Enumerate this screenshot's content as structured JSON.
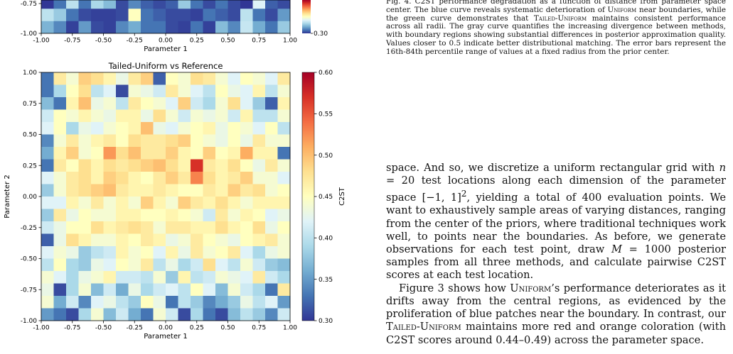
{
  "chart_data": [
    {
      "type": "heatmap",
      "title": "",
      "xlabel": "Parameter 1",
      "ylabel": "",
      "xlim": [
        -1.0,
        1.0
      ],
      "ylim": [
        -1.0,
        -0.75
      ],
      "xticks": [
        "-1.00",
        "-0.75",
        "-0.50",
        "-0.25",
        "0.00",
        "0.25",
        "0.50",
        "0.75",
        "1.00"
      ],
      "yticks": [
        "-1.00",
        "-0.75"
      ],
      "colorbar_ticks": [
        "0.30"
      ],
      "clim": [
        0.3,
        0.6
      ],
      "grid": false,
      "rows_visible_from_bottom": [
        [
          0.365,
          0.34,
          0.305,
          0.35,
          0.31,
          0.305,
          0.34,
          0.36,
          0.33,
          0.33,
          0.31,
          0.305,
          0.33,
          0.305,
          0.37,
          0.34,
          0.405,
          0.36,
          0.33,
          0.38
        ],
        [
          0.4,
          0.38,
          0.33,
          0.31,
          0.305,
          0.305,
          0.31,
          0.45,
          0.33,
          0.32,
          0.31,
          0.31,
          0.305,
          0.33,
          0.32,
          0.31,
          0.4,
          0.33,
          0.31,
          0.35
        ],
        [
          0.3,
          0.33,
          0.4,
          0.33,
          0.39,
          0.37,
          0.31,
          0.34,
          0.32,
          0.31,
          0.32,
          0.38,
          0.33,
          0.31,
          0.33,
          0.31,
          0.3,
          0.42,
          0.32,
          0.31
        ]
      ]
    },
    {
      "type": "heatmap",
      "title": "Tailed-Uniform vs Reference",
      "xlabel": "Parameter 1",
      "ylabel": "Parameter 2",
      "colorbar_label": "C2ST",
      "xlim": [
        -1.0,
        1.0
      ],
      "ylim": [
        -1.0,
        1.0
      ],
      "xticks": [
        "-1.00",
        "-0.75",
        "-0.50",
        "-0.25",
        "0.00",
        "0.25",
        "0.50",
        "0.75",
        "1.00"
      ],
      "yticks": [
        "-1.00",
        "-0.75",
        "-0.50",
        "-0.25",
        "0.00",
        "0.25",
        "0.50",
        "0.75",
        "1.00"
      ],
      "colorbar_ticks": [
        "0.30",
        "0.35",
        "0.40",
        "0.45",
        "0.50",
        "0.55",
        "0.60"
      ],
      "clim": [
        0.3,
        0.6
      ],
      "grid": false,
      "rows_top_to_bottom": [
        [
          0.33,
          0.47,
          0.44,
          0.49,
          0.48,
          0.46,
          0.43,
          0.47,
          0.49,
          0.32,
          0.45,
          0.44,
          0.48,
          0.47,
          0.44,
          0.42,
          0.45,
          0.44,
          0.42,
          0.47
        ],
        [
          0.33,
          0.39,
          0.45,
          0.48,
          0.4,
          0.42,
          0.31,
          0.44,
          0.43,
          0.41,
          0.47,
          0.44,
          0.42,
          0.4,
          0.45,
          0.43,
          0.42,
          0.46,
          0.4,
          0.44
        ],
        [
          0.37,
          0.33,
          0.46,
          0.5,
          0.43,
          0.44,
          0.4,
          0.47,
          0.45,
          0.44,
          0.42,
          0.49,
          0.41,
          0.39,
          0.44,
          0.48,
          0.42,
          0.38,
          0.32,
          0.46
        ],
        [
          0.41,
          0.45,
          0.44,
          0.46,
          0.44,
          0.43,
          0.46,
          0.46,
          0.43,
          0.48,
          0.44,
          0.41,
          0.44,
          0.43,
          0.44,
          0.41,
          0.46,
          0.4,
          0.4,
          0.44
        ],
        [
          0.42,
          0.45,
          0.39,
          0.43,
          0.42,
          0.44,
          0.45,
          0.46,
          0.5,
          0.43,
          0.42,
          0.44,
          0.45,
          0.46,
          0.43,
          0.45,
          0.44,
          0.42,
          0.45,
          0.4
        ],
        [
          0.34,
          0.44,
          0.47,
          0.44,
          0.46,
          0.47,
          0.45,
          0.48,
          0.47,
          0.47,
          0.48,
          0.49,
          0.45,
          0.44,
          0.43,
          0.45,
          0.43,
          0.47,
          0.44,
          0.44
        ],
        [
          0.36,
          0.46,
          0.49,
          0.44,
          0.45,
          0.52,
          0.48,
          0.5,
          0.47,
          0.47,
          0.49,
          0.46,
          0.45,
          0.49,
          0.45,
          0.46,
          0.51,
          0.46,
          0.46,
          0.33
        ],
        [
          0.33,
          0.47,
          0.45,
          0.48,
          0.46,
          0.48,
          0.47,
          0.48,
          0.49,
          0.5,
          0.48,
          0.46,
          0.57,
          0.47,
          0.46,
          0.48,
          0.45,
          0.43,
          0.47,
          0.44
        ],
        [
          0.42,
          0.44,
          0.47,
          0.48,
          0.46,
          0.49,
          0.48,
          0.46,
          0.45,
          0.47,
          0.49,
          0.47,
          0.53,
          0.48,
          0.46,
          0.47,
          0.49,
          0.44,
          0.44,
          0.42
        ],
        [
          0.38,
          0.44,
          0.47,
          0.48,
          0.49,
          0.5,
          0.47,
          0.46,
          0.46,
          0.47,
          0.46,
          0.45,
          0.45,
          0.47,
          0.46,
          0.49,
          0.47,
          0.48,
          0.44,
          0.45
        ],
        [
          0.42,
          0.42,
          0.46,
          0.44,
          0.47,
          0.44,
          0.46,
          0.44,
          0.49,
          0.46,
          0.44,
          0.49,
          0.47,
          0.46,
          0.48,
          0.46,
          0.44,
          0.46,
          0.46,
          0.46
        ],
        [
          0.38,
          0.47,
          0.43,
          0.45,
          0.44,
          0.44,
          0.46,
          0.46,
          0.45,
          0.45,
          0.46,
          0.45,
          0.44,
          0.41,
          0.47,
          0.44,
          0.46,
          0.45,
          0.42,
          0.43
        ],
        [
          0.41,
          0.43,
          0.45,
          0.45,
          0.48,
          0.46,
          0.47,
          0.48,
          0.47,
          0.44,
          0.47,
          0.47,
          0.46,
          0.46,
          0.48,
          0.46,
          0.45,
          0.48,
          0.43,
          0.45
        ],
        [
          0.32,
          0.43,
          0.48,
          0.46,
          0.44,
          0.44,
          0.46,
          0.45,
          0.47,
          0.46,
          0.43,
          0.44,
          0.47,
          0.45,
          0.44,
          0.43,
          0.45,
          0.46,
          0.47,
          0.44
        ],
        [
          0.42,
          0.44,
          0.43,
          0.38,
          0.4,
          0.41,
          0.46,
          0.44,
          0.45,
          0.42,
          0.46,
          0.43,
          0.47,
          0.44,
          0.45,
          0.47,
          0.42,
          0.39,
          0.43,
          0.44
        ],
        [
          0.4,
          0.45,
          0.39,
          0.38,
          0.43,
          0.42,
          0.45,
          0.44,
          0.47,
          0.4,
          0.43,
          0.39,
          0.41,
          0.48,
          0.42,
          0.4,
          0.44,
          0.41,
          0.38,
          0.37
        ],
        [
          0.44,
          0.42,
          0.39,
          0.43,
          0.44,
          0.46,
          0.41,
          0.41,
          0.4,
          0.44,
          0.38,
          0.46,
          0.4,
          0.41,
          0.44,
          0.43,
          0.42,
          0.47,
          0.41,
          0.39
        ],
        [
          0.43,
          0.31,
          0.39,
          0.44,
          0.37,
          0.41,
          0.36,
          0.43,
          0.39,
          0.41,
          0.42,
          0.4,
          0.45,
          0.42,
          0.37,
          0.44,
          0.41,
          0.39,
          0.33,
          0.47
        ],
        [
          0.44,
          0.36,
          0.41,
          0.34,
          0.42,
          0.43,
          0.4,
          0.38,
          0.45,
          0.43,
          0.33,
          0.4,
          0.38,
          0.34,
          0.36,
          0.38,
          0.43,
          0.4,
          0.42,
          0.35
        ],
        [
          0.35,
          0.33,
          0.31,
          0.39,
          0.44,
          0.37,
          0.41,
          0.36,
          0.33,
          0.44,
          0.41,
          0.31,
          0.39,
          0.33,
          0.31,
          0.37,
          0.4,
          0.38,
          0.34,
          0.41
        ]
      ]
    }
  ],
  "caption": {
    "label": "Fig. 4.",
    "text": "C2ST performance degradation as a function of distance from parameter space center. The blue curve reveals systematic deterioration of",
    "uniform": "Uniform",
    "text2": "near boundaries, while the green curve demonstrates that",
    "tailed": "Tailed-Uniform",
    "text3": "maintains consistent performance across all radii. The gray curve quantifies the increasing divergence between methods, with boundary regions showing substantial differences in posterior approximation quality. Values closer to 0.5 indicate better distributional matching. The error bars represent the 16th-84th percentile range of values at a fixed radius from the prior center."
  },
  "body": {
    "p1a": "space. And so, we discretize a uniform rectangular grid with",
    "p1_n": "n",
    "p1b": "= 20 test locations along each dimension of the parameter space [−1, 1]",
    "p1_sup": "2",
    "p1c": ", yielding a total of 400 evaluation points. We want to exhaustively sample areas of varying distances, ranging from the center of the priors, where traditional techniques work well, to points near the boundaries. As before, we generate observations for each test point, draw",
    "p1_m": "M",
    "p1d": "= 1000 posterior samples from all three methods, and calculate pairwise C2ST scores at each test location.",
    "p2a": "Figure 3 shows how",
    "p2_uniform": "Uniform",
    "p2b": "’s performance deteriorates as it drifts away from the central regions, as evidenced by the proliferation of blue patches near the boundary. In contrast, our",
    "p2_tailed": "Tailed-Uniform",
    "p2c": "maintains more red and orange coloration (with C2ST scores around 0.44–0.49) across the parameter space."
  }
}
